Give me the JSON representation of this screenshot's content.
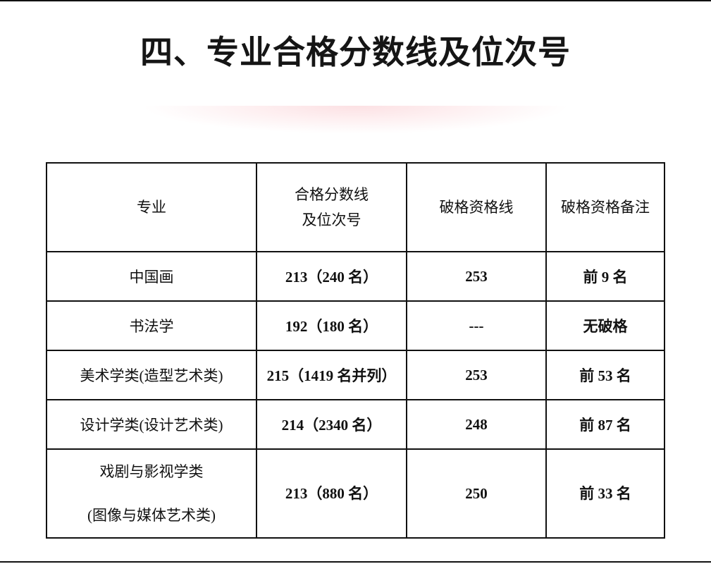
{
  "title": "四、专业合格分数线及位次号",
  "table": {
    "headers": [
      "专业",
      "合格分数线\n及位次号",
      "破格资格线",
      "破格资格备注"
    ],
    "header_lines": {
      "col2_line1": "合格分数线",
      "col2_line2": "及位次号"
    },
    "rows": [
      {
        "major": "中国画",
        "score": "213（240 名）",
        "exception_line": "253",
        "note": "前 9 名"
      },
      {
        "major": "书法学",
        "score": "192（180 名）",
        "exception_line": "---",
        "note": "无破格"
      },
      {
        "major": "美术学类(造型艺术类)",
        "score": "215（1419 名并列）",
        "exception_line": "253",
        "note": "前 53 名"
      },
      {
        "major": "设计学类(设计艺术类)",
        "score": "214（2340 名）",
        "exception_line": "248",
        "note": "前 87 名"
      },
      {
        "major_line1": "戏剧与影视学类",
        "major_line2": "(图像与媒体艺术类)",
        "score": "213（880 名）",
        "exception_line": "250",
        "note": "前 33 名"
      }
    ]
  }
}
